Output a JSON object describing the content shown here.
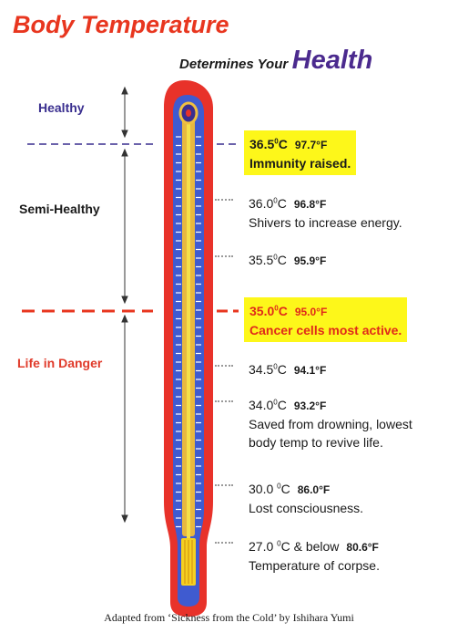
{
  "title": "Body Temperature",
  "subtitle": {
    "lead": "Determines Your",
    "emphasis": "Health"
  },
  "zones": {
    "healthy": "Healthy",
    "semi_healthy": "Semi-Healthy",
    "danger": "Life in Danger"
  },
  "entries": [
    {
      "celsius": "36.5",
      "celsius_unit": "C",
      "fahrenheit": "97.7°F",
      "note": "Immunity raised."
    },
    {
      "celsius": "36.0",
      "celsius_unit": "C",
      "fahrenheit": "96.8°F",
      "note": "Shivers to increase energy."
    },
    {
      "celsius": "35.5",
      "celsius_unit": "C",
      "fahrenheit": "95.9°F",
      "note": ""
    },
    {
      "celsius": "35.0",
      "celsius_unit": "C",
      "fahrenheit": "95.0°F",
      "note": "Cancer cells most active."
    },
    {
      "celsius": "34.5",
      "celsius_unit": "C",
      "fahrenheit": "94.1°F",
      "note": ""
    },
    {
      "celsius": "34.0",
      "celsius_unit": "C",
      "fahrenheit": "93.2°F",
      "note_line1": "Saved from drowning, lowest",
      "note_line2": "body temp to revive life."
    },
    {
      "celsius": "30.0 ",
      "celsius_unit": "C",
      "fahrenheit": "86.0°F",
      "note": "Lost consciousness."
    },
    {
      "celsius": "27.0 ",
      "celsius_unit": "C & below",
      "fahrenheit": "80.6°F",
      "note": "Temperature of corpse."
    }
  ],
  "degree_mark": "0",
  "footer": "Adapted from ‘Sickness from the Cold’ by Ishihara Yumi",
  "colors": {
    "title": "#e8361f",
    "health": "#4b2a8e",
    "highlight": "#fdf71a",
    "alert": "#e02a1a",
    "danger_line": "#e8361f",
    "healthy_line": "#3a2f8f",
    "thermometer_outer": "#e8322a",
    "thermometer_tube": "#3f5bd0"
  }
}
